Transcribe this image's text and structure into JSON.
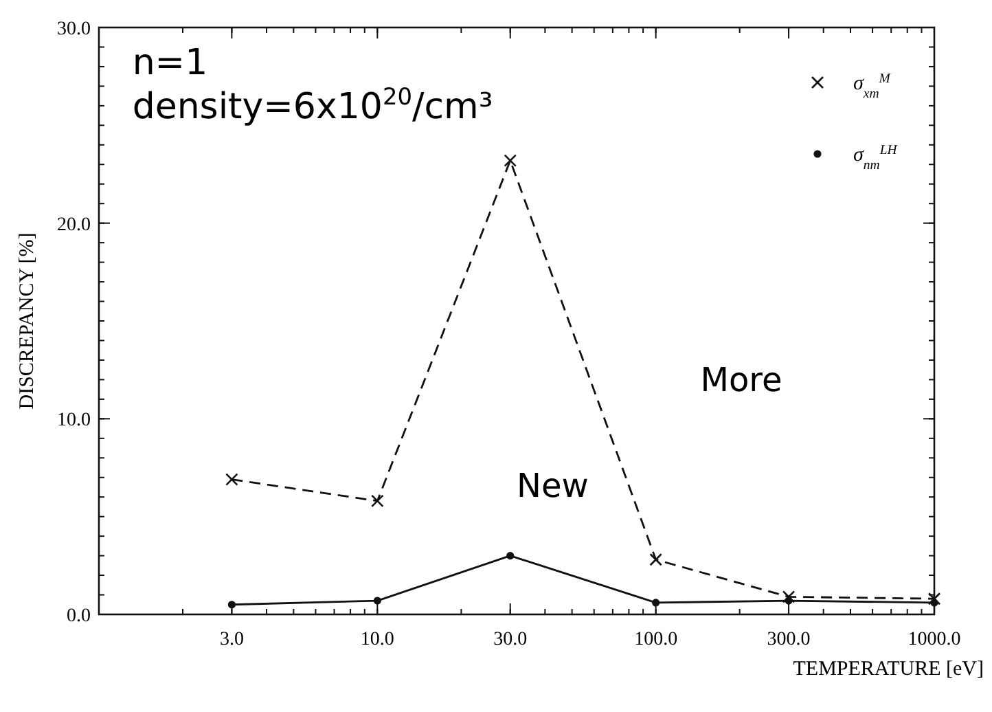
{
  "chart_data": {
    "type": "line",
    "xlabel": "TEMPERATURE [eV]",
    "ylabel": "DISCREPANCY [%]",
    "log": "x",
    "x": [
      3,
      10,
      30,
      100,
      300,
      1000
    ],
    "xlim": [
      1,
      1000
    ],
    "xticks": [
      {
        "value": 3,
        "label": "3.0"
      },
      {
        "value": 10,
        "label": "10.0"
      },
      {
        "value": 30,
        "label": "30.0"
      },
      {
        "value": 100,
        "label": "100.0"
      },
      {
        "value": 300,
        "label": "300.0"
      },
      {
        "value": 1000,
        "label": "1000.0"
      }
    ],
    "ylim": [
      0,
      30
    ],
    "yticks": [
      {
        "value": 0,
        "label": "0.0"
      },
      {
        "value": 10,
        "label": "10.0"
      },
      {
        "value": 20,
        "label": "20.0"
      },
      {
        "value": 30,
        "label": "30.0"
      }
    ],
    "grid": false,
    "legend": "top right",
    "series": [
      {
        "name": "σ$_{xm}$$^{M}$",
        "color": "#111111",
        "marker": "cross",
        "line_style": "dashed",
        "values": [
          6.9,
          5.8,
          23.2,
          2.8,
          0.9,
          0.8
        ]
      },
      {
        "name": "σ$_{nm}$$^{LH}$",
        "color": "#111111",
        "marker": "circle",
        "line_style": "solid",
        "values": [
          0.5,
          0.7,
          3.0,
          0.6,
          0.7,
          0.6
        ]
      }
    ],
    "annotations": [
      "n=1",
      "density=6x10$^{20}$/cm³",
      "More",
      "New"
    ]
  }
}
